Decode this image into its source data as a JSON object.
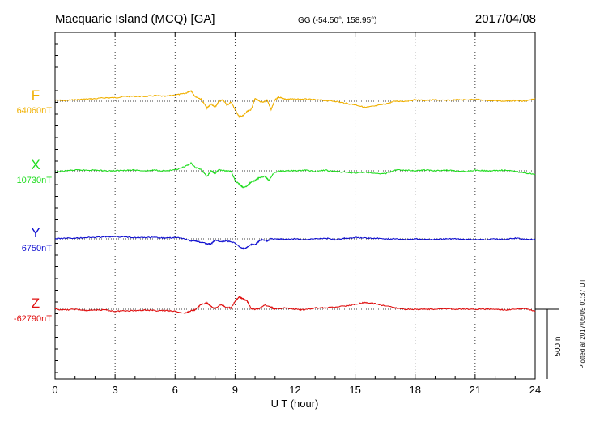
{
  "header": {
    "station": "Macquarie Island (MCQ)  [GA]",
    "coords": "GG (-54.50°, 158.95°)",
    "date": "2017/04/08"
  },
  "footer_note": "Plotted at 2017/05/09 01:37 UT",
  "chart_data": {
    "type": "line",
    "title": "Macquarie Island (MCQ)  [GA]",
    "xlabel": "U T (hour)",
    "xlim": [
      0,
      24
    ],
    "xticks": [
      0,
      3,
      6,
      9,
      12,
      15,
      18,
      21,
      24
    ],
    "tick_labels": [
      "0",
      "3",
      "6",
      "9",
      "12",
      "15",
      "18",
      "21",
      "24"
    ],
    "grid": true,
    "scale_bar": {
      "label": "500 nT",
      "value_nT": 500
    },
    "colors": {
      "F": "#f0b000",
      "X": "#22dd22",
      "Y": "#1010d0",
      "Z": "#e01010"
    },
    "series": [
      {
        "name": "F",
        "baseline_label": "64060nT",
        "baseline_nT": 64060,
        "color": "#f0b000",
        "points": [
          [
            0,
            -8
          ],
          [
            0.5,
            -5
          ],
          [
            1,
            -10
          ],
          [
            1.5,
            -15
          ],
          [
            2,
            -18
          ],
          [
            2.5,
            -25
          ],
          [
            3,
            -25
          ],
          [
            3.5,
            -35
          ],
          [
            4,
            -35
          ],
          [
            4.5,
            -35
          ],
          [
            5,
            -40
          ],
          [
            5.5,
            -35
          ],
          [
            6,
            -45
          ],
          [
            6.5,
            -55
          ],
          [
            6.8,
            -75
          ],
          [
            7,
            -35
          ],
          [
            7.3,
            -15
          ],
          [
            7.6,
            50
          ],
          [
            7.8,
            20
          ],
          [
            8,
            45
          ],
          [
            8.2,
            0
          ],
          [
            8.4,
            -10
          ],
          [
            8.6,
            30
          ],
          [
            8.8,
            5
          ],
          [
            9,
            60
          ],
          [
            9.2,
            110
          ],
          [
            9.4,
            105
          ],
          [
            9.6,
            75
          ],
          [
            9.8,
            60
          ],
          [
            10,
            -20
          ],
          [
            10.2,
            0
          ],
          [
            10.4,
            10
          ],
          [
            10.6,
            -10
          ],
          [
            10.8,
            60
          ],
          [
            11,
            -10
          ],
          [
            11.2,
            -30
          ],
          [
            11.5,
            -15
          ],
          [
            12,
            -15
          ],
          [
            12.5,
            -15
          ],
          [
            13,
            -10
          ],
          [
            13.5,
            -5
          ],
          [
            14,
            0
          ],
          [
            14.5,
            15
          ],
          [
            15,
            25
          ],
          [
            15.5,
            45
          ],
          [
            16,
            35
          ],
          [
            16.5,
            20
          ],
          [
            17,
            0
          ],
          [
            17.5,
            0
          ],
          [
            18,
            -10
          ],
          [
            18.5,
            -5
          ],
          [
            19,
            -10
          ],
          [
            19.5,
            -5
          ],
          [
            20,
            -10
          ],
          [
            20.5,
            -10
          ],
          [
            21,
            -15
          ],
          [
            21.5,
            -5
          ],
          [
            22,
            -5
          ],
          [
            22.5,
            0
          ],
          [
            23,
            -5
          ],
          [
            23.5,
            0
          ],
          [
            24,
            -20
          ]
        ]
      },
      {
        "name": "X",
        "baseline_label": "10730nT",
        "baseline_nT": 10730,
        "color": "#22dd22",
        "points": [
          [
            0,
            10
          ],
          [
            0.5,
            0
          ],
          [
            1,
            -5
          ],
          [
            1.5,
            -5
          ],
          [
            2,
            -5
          ],
          [
            2.5,
            0
          ],
          [
            3,
            0
          ],
          [
            3.5,
            -5
          ],
          [
            4,
            -5
          ],
          [
            4.5,
            0
          ],
          [
            5,
            -5
          ],
          [
            5.5,
            0
          ],
          [
            6,
            -5
          ],
          [
            6.5,
            -30
          ],
          [
            6.8,
            -55
          ],
          [
            7,
            -25
          ],
          [
            7.3,
            -10
          ],
          [
            7.6,
            40
          ],
          [
            7.8,
            0
          ],
          [
            8,
            20
          ],
          [
            8.2,
            -10
          ],
          [
            8.5,
            0
          ],
          [
            8.8,
            0
          ],
          [
            9,
            70
          ],
          [
            9.2,
            95
          ],
          [
            9.4,
            120
          ],
          [
            9.6,
            110
          ],
          [
            9.8,
            80
          ],
          [
            10,
            70
          ],
          [
            10.2,
            50
          ],
          [
            10.5,
            40
          ],
          [
            10.7,
            70
          ],
          [
            10.9,
            20
          ],
          [
            11.2,
            0
          ],
          [
            11.5,
            0
          ],
          [
            12,
            0
          ],
          [
            12.5,
            -5
          ],
          [
            13,
            5
          ],
          [
            13.5,
            -5
          ],
          [
            14,
            5
          ],
          [
            14.5,
            10
          ],
          [
            15,
            15
          ],
          [
            15.5,
            10
          ],
          [
            16,
            20
          ],
          [
            16.5,
            20
          ],
          [
            17,
            -5
          ],
          [
            17.5,
            -5
          ],
          [
            18,
            0
          ],
          [
            18.5,
            -5
          ],
          [
            19,
            0
          ],
          [
            19.5,
            -5
          ],
          [
            20,
            0
          ],
          [
            20.5,
            5
          ],
          [
            21,
            -5
          ],
          [
            21.5,
            0
          ],
          [
            22,
            0
          ],
          [
            22.5,
            -5
          ],
          [
            23,
            5
          ],
          [
            23.5,
            15
          ],
          [
            24,
            25
          ]
        ]
      },
      {
        "name": "Y",
        "baseline_label": "6750nT",
        "baseline_nT": 6750,
        "color": "#1010d0",
        "points": [
          [
            0,
            0
          ],
          [
            0.5,
            -5
          ],
          [
            1,
            -5
          ],
          [
            1.5,
            -10
          ],
          [
            2,
            -10
          ],
          [
            2.5,
            -15
          ],
          [
            3,
            -15
          ],
          [
            3.5,
            -15
          ],
          [
            4,
            -10
          ],
          [
            4.5,
            -10
          ],
          [
            5,
            -10
          ],
          [
            5.5,
            -5
          ],
          [
            6,
            -10
          ],
          [
            6.5,
            0
          ],
          [
            6.8,
            15
          ],
          [
            7,
            15
          ],
          [
            7.3,
            25
          ],
          [
            7.6,
            35
          ],
          [
            7.8,
            35
          ],
          [
            8,
            10
          ],
          [
            8.3,
            20
          ],
          [
            8.6,
            15
          ],
          [
            9,
            30
          ],
          [
            9.3,
            65
          ],
          [
            9.5,
            70
          ],
          [
            9.8,
            40
          ],
          [
            10,
            40
          ],
          [
            10.3,
            5
          ],
          [
            10.6,
            15
          ],
          [
            10.8,
            0
          ],
          [
            11.2,
            0
          ],
          [
            11.5,
            5
          ],
          [
            12,
            0
          ],
          [
            12.5,
            5
          ],
          [
            13,
            0
          ],
          [
            13.5,
            -5
          ],
          [
            14,
            5
          ],
          [
            14.5,
            -5
          ],
          [
            15,
            -10
          ],
          [
            15.5,
            -5
          ],
          [
            16,
            -5
          ],
          [
            16.5,
            0
          ],
          [
            17,
            0
          ],
          [
            17.5,
            5
          ],
          [
            18,
            0
          ],
          [
            18.5,
            5
          ],
          [
            19,
            5
          ],
          [
            19.5,
            0
          ],
          [
            20,
            0
          ],
          [
            20.5,
            5
          ],
          [
            21,
            5
          ],
          [
            21.5,
            5
          ],
          [
            22,
            0
          ],
          [
            22.5,
            5
          ],
          [
            23,
            -5
          ],
          [
            23.5,
            5
          ],
          [
            24,
            5
          ]
        ]
      },
      {
        "name": "Z",
        "baseline_label": "-62790nT",
        "baseline_nT": -62790,
        "color": "#e01010",
        "points": [
          [
            0,
            0
          ],
          [
            0.5,
            5
          ],
          [
            1,
            0
          ],
          [
            1.5,
            10
          ],
          [
            2,
            5
          ],
          [
            2.5,
            5
          ],
          [
            3,
            15
          ],
          [
            3.5,
            10
          ],
          [
            4,
            10
          ],
          [
            4.5,
            5
          ],
          [
            5,
            10
          ],
          [
            5.5,
            10
          ],
          [
            6,
            15
          ],
          [
            6.5,
            30
          ],
          [
            6.8,
            10
          ],
          [
            7,
            5
          ],
          [
            7.3,
            -35
          ],
          [
            7.6,
            -45
          ],
          [
            7.8,
            -20
          ],
          [
            8,
            -5
          ],
          [
            8.3,
            -35
          ],
          [
            8.6,
            -10
          ],
          [
            8.8,
            -10
          ],
          [
            9,
            -55
          ],
          [
            9.2,
            -90
          ],
          [
            9.4,
            -75
          ],
          [
            9.6,
            -60
          ],
          [
            9.8,
            -5
          ],
          [
            10,
            0
          ],
          [
            10.2,
            -5
          ],
          [
            10.5,
            -30
          ],
          [
            10.8,
            -15
          ],
          [
            11,
            0
          ],
          [
            11.5,
            -10
          ],
          [
            12,
            0
          ],
          [
            12.5,
            5
          ],
          [
            13,
            -10
          ],
          [
            13.5,
            -10
          ],
          [
            14,
            -15
          ],
          [
            14.5,
            -25
          ],
          [
            15,
            -35
          ],
          [
            15.5,
            -50
          ],
          [
            16,
            -40
          ],
          [
            16.5,
            -25
          ],
          [
            17,
            -10
          ],
          [
            17.5,
            0
          ],
          [
            18,
            0
          ],
          [
            18.5,
            0
          ],
          [
            19,
            0
          ],
          [
            19.5,
            -5
          ],
          [
            20,
            0
          ],
          [
            20.5,
            0
          ],
          [
            21,
            0
          ],
          [
            21.5,
            0
          ],
          [
            22,
            0
          ],
          [
            22.5,
            5
          ],
          [
            23,
            0
          ],
          [
            23.5,
            -5
          ],
          [
            24,
            15
          ]
        ]
      }
    ]
  }
}
